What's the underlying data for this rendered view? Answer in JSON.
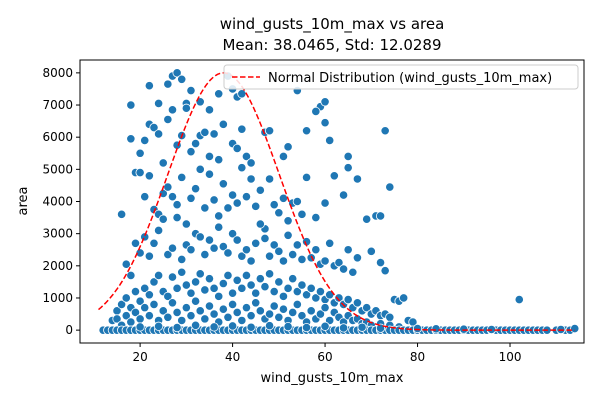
{
  "chart_data": {
    "type": "scatter",
    "title": "wind_gusts_10m_max vs area",
    "subtitle": "Mean: 38.0465, Std: 12.0289",
    "xlabel": "wind_gusts_10m_max",
    "ylabel": "area",
    "xlim": [
      7,
      116
    ],
    "ylim": [
      -400,
      8400
    ],
    "xticks": [
      20,
      40,
      60,
      80,
      100
    ],
    "yticks": [
      0,
      1000,
      2000,
      3000,
      4000,
      5000,
      6000,
      7000,
      8000
    ],
    "grid": false,
    "legend_position": "top-right",
    "marker_color": "#1f77b4",
    "curve_color": "#ff0000",
    "normal_curve": {
      "name": "Normal Distribution (wind_gusts_10m_max)",
      "mean": 38.0465,
      "std": 12.0289,
      "peak_area": 8000,
      "x_range": [
        11,
        114
      ]
    },
    "points": [
      [
        18,
        7000
      ],
      [
        22,
        7600
      ],
      [
        24,
        7050
      ],
      [
        26,
        7650
      ],
      [
        27,
        7900
      ],
      [
        28,
        8000
      ],
      [
        29,
        7800
      ],
      [
        30,
        7050
      ],
      [
        31,
        7450
      ],
      [
        33,
        7100
      ],
      [
        35,
        6850
      ],
      [
        37,
        7350
      ],
      [
        39,
        7900
      ],
      [
        40,
        7500
      ],
      [
        41,
        7250
      ],
      [
        42,
        7350
      ],
      [
        54,
        7450
      ],
      [
        59,
        6950
      ],
      [
        60,
        7100
      ],
      [
        18,
        5950
      ],
      [
        20,
        5500
      ],
      [
        21,
        5900
      ],
      [
        22,
        6400
      ],
      [
        23,
        6300
      ],
      [
        24,
        6100
      ],
      [
        25,
        5200
      ],
      [
        26,
        6550
      ],
      [
        27,
        6850
      ],
      [
        28,
        5750
      ],
      [
        29,
        6050
      ],
      [
        30,
        6900
      ],
      [
        31,
        5550
      ],
      [
        32,
        5800
      ],
      [
        33,
        6050
      ],
      [
        34,
        6150
      ],
      [
        35,
        5400
      ],
      [
        36,
        6100
      ],
      [
        37,
        5300
      ],
      [
        38,
        6400
      ],
      [
        40,
        5800
      ],
      [
        41,
        5650
      ],
      [
        42,
        6250
      ],
      [
        43,
        5400
      ],
      [
        44,
        5200
      ],
      [
        47,
        6150
      ],
      [
        48,
        6200
      ],
      [
        51,
        5400
      ],
      [
        52,
        5700
      ],
      [
        56,
        6200
      ],
      [
        58,
        6800
      ],
      [
        60,
        6450
      ],
      [
        61,
        5900
      ],
      [
        65,
        5400
      ],
      [
        73,
        6200
      ],
      [
        16,
        3600
      ],
      [
        19,
        4900
      ],
      [
        20,
        4900
      ],
      [
        21,
        4150
      ],
      [
        22,
        4800
      ],
      [
        23,
        3750
      ],
      [
        24,
        3600
      ],
      [
        25,
        4250
      ],
      [
        26,
        4450
      ],
      [
        27,
        4150
      ],
      [
        28,
        3900
      ],
      [
        29,
        4750
      ],
      [
        30,
        3300
      ],
      [
        31,
        4100
      ],
      [
        32,
        4400
      ],
      [
        33,
        5000
      ],
      [
        34,
        3800
      ],
      [
        35,
        4850
      ],
      [
        36,
        4050
      ],
      [
        37,
        3550
      ],
      [
        38,
        4550
      ],
      [
        39,
        3800
      ],
      [
        40,
        4200
      ],
      [
        41,
        3950
      ],
      [
        42,
        5050
      ],
      [
        43,
        4150
      ],
      [
        44,
        4700
      ],
      [
        45,
        3850
      ],
      [
        46,
        4350
      ],
      [
        47,
        3150
      ],
      [
        48,
        4700
      ],
      [
        49,
        3900
      ],
      [
        50,
        3650
      ],
      [
        51,
        4100
      ],
      [
        52,
        3400
      ],
      [
        53,
        3950
      ],
      [
        54,
        4000
      ],
      [
        55,
        3600
      ],
      [
        56,
        4750
      ],
      [
        58,
        3500
      ],
      [
        60,
        3950
      ],
      [
        62,
        4800
      ],
      [
        64,
        4200
      ],
      [
        65,
        5050
      ],
      [
        67,
        4700
      ],
      [
        69,
        3450
      ],
      [
        71,
        3550
      ],
      [
        72,
        3550
      ],
      [
        74,
        4450
      ],
      [
        17,
        2050
      ],
      [
        18,
        1700
      ],
      [
        19,
        2700
      ],
      [
        20,
        2400
      ],
      [
        21,
        2900
      ],
      [
        22,
        2300
      ],
      [
        23,
        2700
      ],
      [
        24,
        3100
      ],
      [
        25,
        3450
      ],
      [
        26,
        2350
      ],
      [
        27,
        2550
      ],
      [
        28,
        3500
      ],
      [
        29,
        2200
      ],
      [
        30,
        2650
      ],
      [
        31,
        2500
      ],
      [
        32,
        3000
      ],
      [
        33,
        2900
      ],
      [
        34,
        2350
      ],
      [
        35,
        2800
      ],
      [
        36,
        2550
      ],
      [
        37,
        3200
      ],
      [
        38,
        2600
      ],
      [
        39,
        2400
      ],
      [
        40,
        3000
      ],
      [
        41,
        2800
      ],
      [
        42,
        2300
      ],
      [
        43,
        2500
      ],
      [
        44,
        2150
      ],
      [
        45,
        2700
      ],
      [
        46,
        3300
      ],
      [
        47,
        2850
      ],
      [
        48,
        2300
      ],
      [
        49,
        2650
      ],
      [
        50,
        2450
      ],
      [
        51,
        2150
      ],
      [
        52,
        2950
      ],
      [
        53,
        2350
      ],
      [
        54,
        2650
      ],
      [
        55,
        2200
      ],
      [
        56,
        2750
      ],
      [
        57,
        2250
      ],
      [
        58,
        2500
      ],
      [
        59,
        2050
      ],
      [
        60,
        2150
      ],
      [
        61,
        2700
      ],
      [
        62,
        2000
      ],
      [
        63,
        2100
      ],
      [
        64,
        1900
      ],
      [
        65,
        2500
      ],
      [
        66,
        1800
      ],
      [
        67,
        2250
      ],
      [
        70,
        2450
      ],
      [
        72,
        2100
      ],
      [
        73,
        1850
      ],
      [
        14,
        300
      ],
      [
        15,
        600
      ],
      [
        16,
        800
      ],
      [
        17,
        1000
      ],
      [
        18,
        700
      ],
      [
        19,
        1200
      ],
      [
        20,
        900
      ],
      [
        21,
        1300
      ],
      [
        22,
        1100
      ],
      [
        23,
        1500
      ],
      [
        24,
        1700
      ],
      [
        25,
        1200
      ],
      [
        26,
        1050
      ],
      [
        27,
        1650
      ],
      [
        28,
        1300
      ],
      [
        29,
        1800
      ],
      [
        30,
        1400
      ],
      [
        31,
        1150
      ],
      [
        32,
        1500
      ],
      [
        33,
        1750
      ],
      [
        34,
        1250
      ],
      [
        35,
        1600
      ],
      [
        36,
        1300
      ],
      [
        37,
        1050
      ],
      [
        38,
        1450
      ],
      [
        39,
        1700
      ],
      [
        40,
        1150
      ],
      [
        41,
        1550
      ],
      [
        42,
        1300
      ],
      [
        43,
        1700
      ],
      [
        44,
        1400
      ],
      [
        45,
        1150
      ],
      [
        46,
        1600
      ],
      [
        47,
        1350
      ],
      [
        48,
        1750
      ],
      [
        49,
        1200
      ],
      [
        50,
        1500
      ],
      [
        51,
        1050
      ],
      [
        52,
        1300
      ],
      [
        53,
        1600
      ],
      [
        54,
        1200
      ],
      [
        55,
        1400
      ],
      [
        56,
        1100
      ],
      [
        57,
        1300
      ],
      [
        58,
        1000
      ],
      [
        59,
        1200
      ],
      [
        60,
        950
      ],
      [
        61,
        1100
      ],
      [
        62,
        850
      ],
      [
        63,
        1000
      ],
      [
        64,
        800
      ],
      [
        65,
        950
      ],
      [
        66,
        700
      ],
      [
        67,
        850
      ],
      [
        68,
        600
      ],
      [
        69,
        700
      ],
      [
        70,
        500
      ],
      [
        71,
        600
      ],
      [
        72,
        450
      ],
      [
        73,
        500
      ],
      [
        74,
        400
      ],
      [
        75,
        950
      ],
      [
        76,
        900
      ],
      [
        77,
        1000
      ],
      [
        78,
        300
      ],
      [
        79,
        250
      ],
      [
        15,
        350
      ],
      [
        16,
        150
      ],
      [
        17,
        450
      ],
      [
        18,
        250
      ],
      [
        19,
        550
      ],
      [
        20,
        350
      ],
      [
        21,
        700
      ],
      [
        22,
        450
      ],
      [
        23,
        800
      ],
      [
        24,
        300
      ],
      [
        25,
        600
      ],
      [
        26,
        400
      ],
      [
        27,
        850
      ],
      [
        28,
        550
      ],
      [
        29,
        300
      ],
      [
        30,
        700
      ],
      [
        31,
        450
      ],
      [
        32,
        900
      ],
      [
        33,
        600
      ],
      [
        34,
        350
      ],
      [
        35,
        750
      ],
      [
        36,
        500
      ],
      [
        37,
        250
      ],
      [
        38,
        650
      ],
      [
        39,
        400
      ],
      [
        40,
        800
      ],
      [
        41,
        550
      ],
      [
        42,
        300
      ],
      [
        43,
        700
      ],
      [
        44,
        450
      ],
      [
        45,
        850
      ],
      [
        46,
        600
      ],
      [
        47,
        350
      ],
      [
        48,
        500
      ],
      [
        49,
        750
      ],
      [
        50,
        400
      ],
      [
        51,
        650
      ],
      [
        52,
        300
      ],
      [
        53,
        550
      ],
      [
        54,
        800
      ],
      [
        55,
        450
      ],
      [
        56,
        250
      ],
      [
        57,
        600
      ],
      [
        58,
        350
      ],
      [
        59,
        500
      ],
      [
        60,
        700
      ],
      [
        61,
        300
      ],
      [
        62,
        550
      ],
      [
        63,
        400
      ],
      [
        64,
        250
      ],
      [
        65,
        450
      ],
      [
        66,
        300
      ],
      [
        67,
        350
      ],
      [
        68,
        200
      ],
      [
        69,
        250
      ],
      [
        70,
        150
      ],
      [
        72,
        200
      ],
      [
        74,
        150
      ],
      [
        76,
        100
      ],
      [
        12,
        0
      ],
      [
        13,
        0
      ],
      [
        14,
        0
      ],
      [
        15,
        0
      ],
      [
        16,
        0
      ],
      [
        17,
        0
      ],
      [
        18,
        0
      ],
      [
        19,
        0
      ],
      [
        20,
        0
      ],
      [
        21,
        0
      ],
      [
        22,
        0
      ],
      [
        23,
        0
      ],
      [
        24,
        0
      ],
      [
        25,
        0
      ],
      [
        26,
        0
      ],
      [
        27,
        0
      ],
      [
        28,
        0
      ],
      [
        29,
        0
      ],
      [
        30,
        0
      ],
      [
        31,
        0
      ],
      [
        32,
        0
      ],
      [
        33,
        0
      ],
      [
        34,
        0
      ],
      [
        35,
        0
      ],
      [
        36,
        0
      ],
      [
        37,
        0
      ],
      [
        38,
        0
      ],
      [
        39,
        0
      ],
      [
        40,
        0
      ],
      [
        41,
        0
      ],
      [
        42,
        0
      ],
      [
        43,
        0
      ],
      [
        44,
        0
      ],
      [
        45,
        0
      ],
      [
        46,
        0
      ],
      [
        47,
        0
      ],
      [
        48,
        0
      ],
      [
        49,
        0
      ],
      [
        50,
        0
      ],
      [
        51,
        0
      ],
      [
        52,
        0
      ],
      [
        53,
        0
      ],
      [
        54,
        0
      ],
      [
        55,
        0
      ],
      [
        56,
        0
      ],
      [
        57,
        0
      ],
      [
        58,
        0
      ],
      [
        59,
        0
      ],
      [
        60,
        0
      ],
      [
        61,
        0
      ],
      [
        62,
        0
      ],
      [
        63,
        0
      ],
      [
        64,
        0
      ],
      [
        65,
        0
      ],
      [
        66,
        0
      ],
      [
        67,
        0
      ],
      [
        68,
        0
      ],
      [
        69,
        0
      ],
      [
        70,
        0
      ],
      [
        71,
        0
      ],
      [
        72,
        0
      ],
      [
        73,
        0
      ],
      [
        74,
        0
      ],
      [
        75,
        0
      ],
      [
        76,
        0
      ],
      [
        77,
        0
      ],
      [
        78,
        0
      ],
      [
        79,
        0
      ],
      [
        80,
        0
      ],
      [
        81,
        0
      ],
      [
        82,
        0
      ],
      [
        83,
        0
      ],
      [
        84,
        0
      ],
      [
        85,
        0
      ],
      [
        86,
        0
      ],
      [
        87,
        0
      ],
      [
        88,
        0
      ],
      [
        89,
        0
      ],
      [
        90,
        0
      ],
      [
        91,
        0
      ],
      [
        92,
        0
      ],
      [
        93,
        0
      ],
      [
        94,
        0
      ],
      [
        95,
        0
      ],
      [
        96,
        0
      ],
      [
        97,
        0
      ],
      [
        98,
        0
      ],
      [
        99,
        0
      ],
      [
        100,
        0
      ],
      [
        101,
        0
      ],
      [
        102,
        0
      ],
      [
        103,
        0
      ],
      [
        104,
        0
      ],
      [
        105,
        0
      ],
      [
        106,
        0
      ],
      [
        107,
        0
      ],
      [
        108,
        0
      ],
      [
        110,
        0
      ],
      [
        112,
        0
      ],
      [
        113,
        0
      ],
      [
        20,
        100
      ],
      [
        24,
        120
      ],
      [
        28,
        80
      ],
      [
        32,
        150
      ],
      [
        36,
        100
      ],
      [
        40,
        130
      ],
      [
        44,
        90
      ],
      [
        48,
        140
      ],
      [
        52,
        110
      ],
      [
        56,
        80
      ],
      [
        60,
        120
      ],
      [
        64,
        70
      ],
      [
        68,
        90
      ],
      [
        72,
        60
      ],
      [
        80,
        50
      ],
      [
        84,
        40
      ],
      [
        90,
        30
      ],
      [
        96,
        20
      ],
      [
        102,
        950
      ],
      [
        111,
        20
      ],
      [
        114,
        50
      ]
    ]
  }
}
